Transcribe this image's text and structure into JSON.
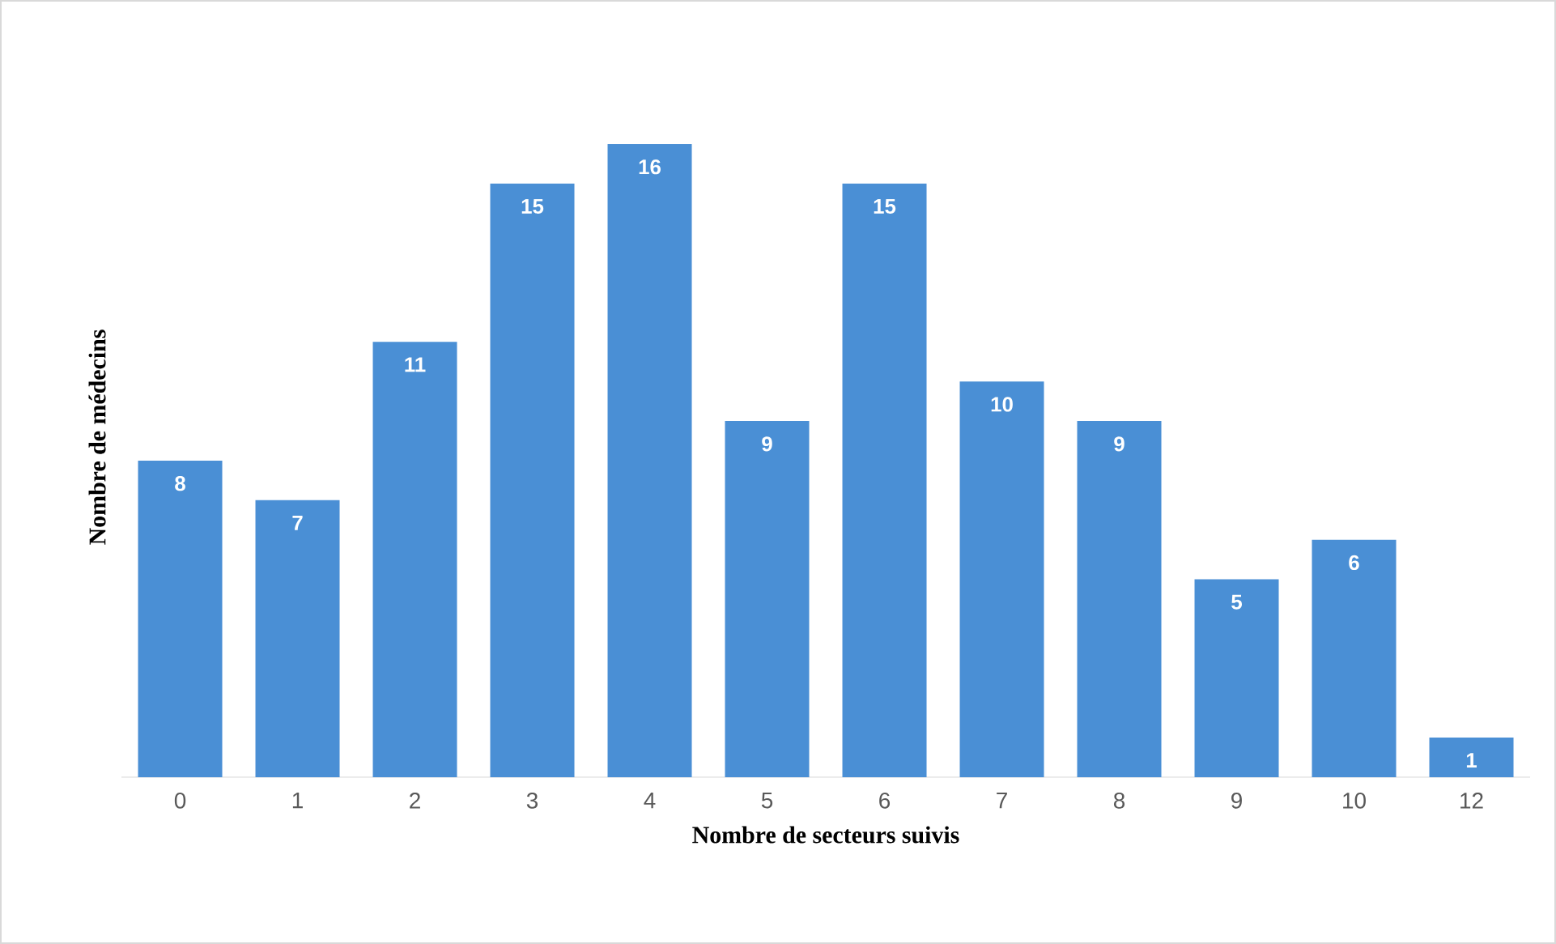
{
  "chart_data": {
    "type": "bar",
    "xlabel": "Nombre de secteurs suivis",
    "ylabel": "Nombre de médecins",
    "categories": [
      "0",
      "1",
      "2",
      "3",
      "4",
      "5",
      "6",
      "7",
      "8",
      "9",
      "10",
      "12"
    ],
    "values": [
      8,
      7,
      11,
      15,
      16,
      9,
      15,
      10,
      9,
      5,
      6,
      1
    ],
    "color": "#4a8fd5",
    "data_labels": true
  }
}
